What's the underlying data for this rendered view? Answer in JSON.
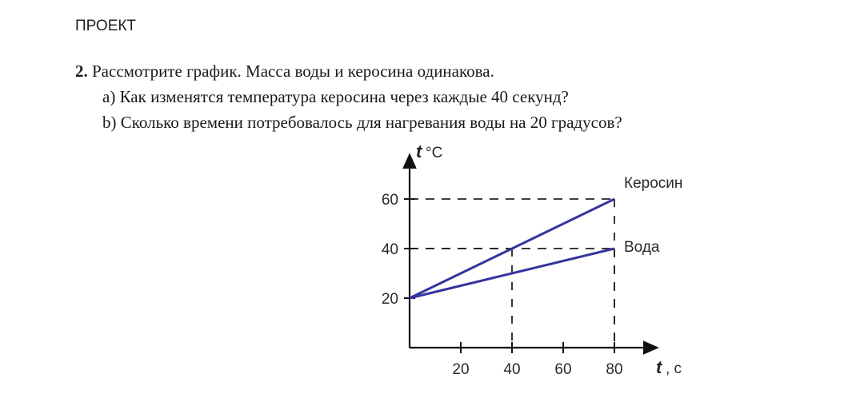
{
  "header": {
    "label": "ПРОЕКТ"
  },
  "task": {
    "number": "2.",
    "intro": "Рассмотрите график. Масса воды и керосина одинакова.",
    "question_a": "a) Как изменятся температура керосина через каждые 40 секунд?",
    "question_b": "b) Сколько времени потребовалось для нагревания воды на 20 градусов?"
  },
  "chart_data": {
    "type": "line",
    "y_axis_letter": "t",
    "y_axis_unit": " °C",
    "x_axis_letter": "t",
    "x_axis_unit": " , с",
    "xlim": [
      0,
      80
    ],
    "ylim": [
      0,
      65
    ],
    "x_ticks": [
      20,
      40,
      60,
      80
    ],
    "y_ticks": [
      20,
      40,
      60
    ],
    "series": [
      {
        "name": "Керосин",
        "x": [
          0,
          80
        ],
        "y": [
          20,
          60
        ],
        "color": "#3535a0"
      },
      {
        "name": "Вода",
        "x": [
          0,
          80
        ],
        "y": [
          20,
          40
        ],
        "color": "#3535a0"
      }
    ],
    "guide_lines": [
      {
        "x": 80,
        "y": 60
      },
      {
        "x": 40,
        "y": 40
      },
      {
        "x": 80,
        "y": 40
      }
    ],
    "grid": false
  }
}
